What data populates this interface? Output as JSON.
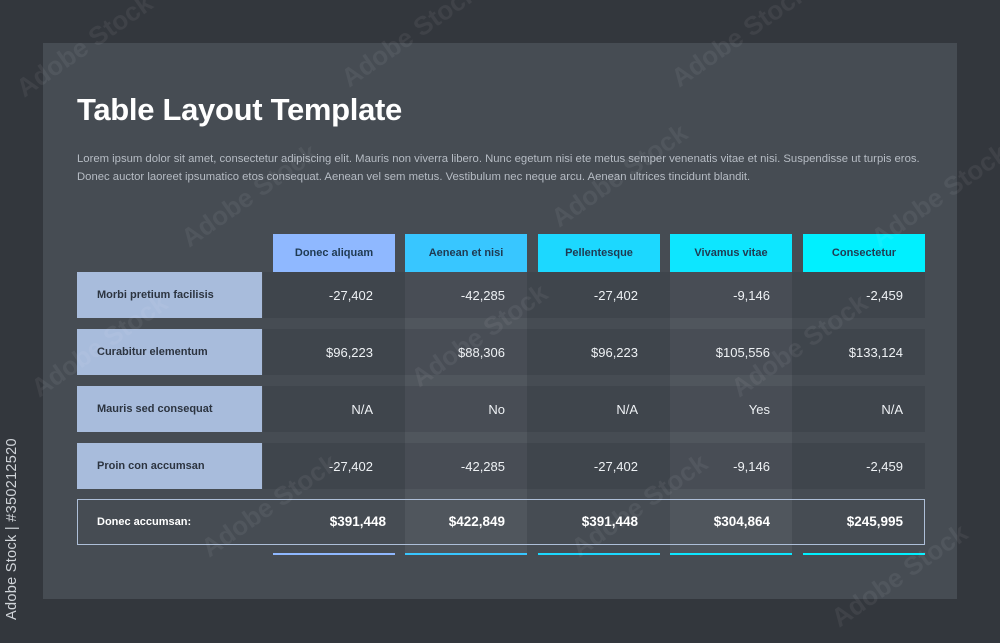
{
  "title": "Table Layout Template",
  "description": "Lorem ipsum dolor sit amet, consectetur adipiscing elit. Mauris non viverra libero. Nunc egetum nisi ete metus semper venenatis vitae et nisi. Suspendisse ut turpis eros. Donec auctor laoreet ipsumatico etos consequat. Aenean vel sem metus. Vestibulum nec neque arcu. Aenean ultrices tincidunt blandit.",
  "table": {
    "columns": [
      {
        "label": "Donec aliquam",
        "color": "#8fb8ff"
      },
      {
        "label": "Aenean et nisi",
        "color": "#38c6ff"
      },
      {
        "label": "Pellentesque",
        "color": "#1cd8ff"
      },
      {
        "label": "Vivamus vitae",
        "color": "#0de6ff"
      },
      {
        "label": "Consectetur",
        "color": "#00f0ff"
      }
    ],
    "rows": [
      {
        "label": "Morbi pretium facilisis",
        "cells": [
          "-27,402",
          "-42,285",
          "-27,402",
          "-9,146",
          "-2,459"
        ]
      },
      {
        "label": "Curabitur elementum",
        "cells": [
          "$96,223",
          "$88,306",
          "$96,223",
          "$105,556",
          "$133,124"
        ]
      },
      {
        "label": "Mauris sed consequat",
        "cells": [
          "N/A",
          "No",
          "N/A",
          "Yes",
          "N/A"
        ]
      },
      {
        "label": "Proin con accumsan",
        "cells": [
          "-27,402",
          "-42,285",
          "-27,402",
          "-9,146",
          "-2,459"
        ]
      }
    ],
    "total": {
      "label": "Donec accumsan:",
      "cells": [
        "$391,448",
        "$422,849",
        "$391,448",
        "$304,864",
        "$245,995"
      ]
    }
  },
  "watermark": "Adobe Stock",
  "stock_id": "Adobe Stock | #350212520"
}
